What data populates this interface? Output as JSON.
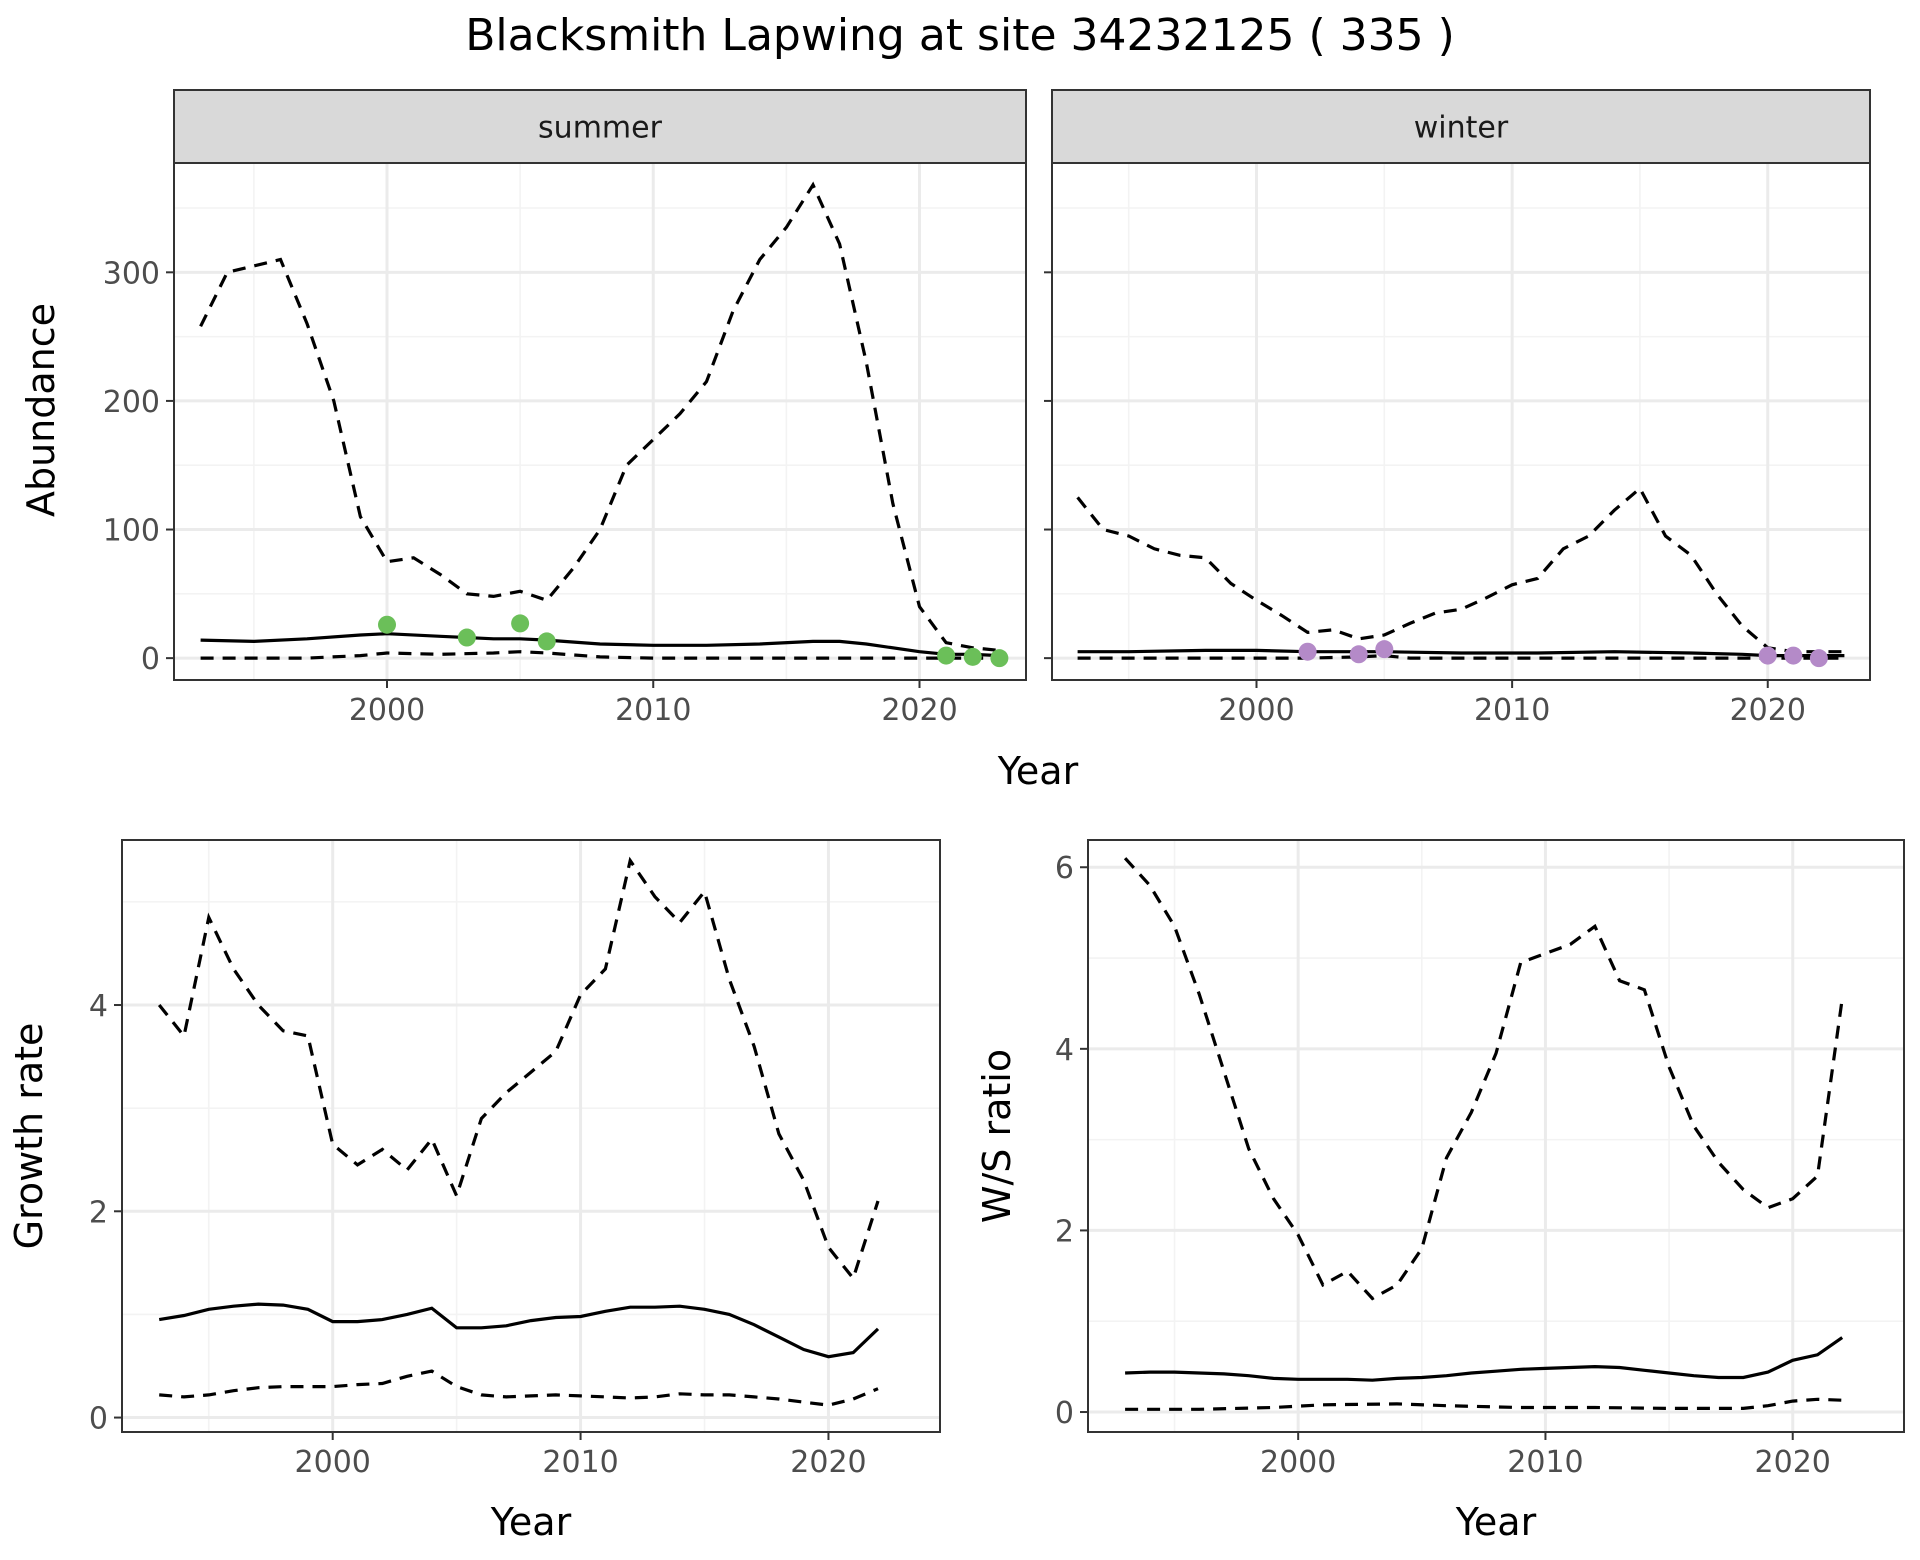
{
  "figure": {
    "title": "Blacksmith Lapwing at site 34232125 ( 335 )",
    "colors": {
      "summer_points": "#6bbf59",
      "winter_points": "#b48ac8",
      "lines": "#000000"
    }
  },
  "chart_data": [
    {
      "id": "summer",
      "type": "line",
      "facet_label": "summer",
      "xlabel": "",
      "ylabel": "Abundance",
      "xlim": [
        1992,
        2024
      ],
      "ylim": [
        -17,
        385
      ],
      "xticks": [
        2000,
        2010,
        2020
      ],
      "yticks": [
        0,
        100,
        200,
        300
      ],
      "grid": true,
      "series": [
        {
          "role": "mean",
          "x": [
            1993,
            1995,
            1997,
            1999,
            2000,
            2002,
            2004,
            2005,
            2006,
            2008,
            2010,
            2012,
            2014,
            2016,
            2017,
            2018,
            2020,
            2021,
            2022,
            2023
          ],
          "y": [
            14,
            13,
            15,
            18,
            19,
            17,
            15,
            15,
            14,
            11,
            10,
            10,
            11,
            13,
            13,
            11,
            5,
            3,
            3,
            2
          ]
        },
        {
          "role": "upper",
          "x": [
            1993,
            1994,
            1995,
            1996,
            1997,
            1998,
            1999,
            2000,
            2001,
            2002,
            2003,
            2004,
            2005,
            2006,
            2007,
            2008,
            2009,
            2010,
            2011,
            2012,
            2013,
            2014,
            2015,
            2016,
            2017,
            2018,
            2019,
            2020,
            2021,
            2022,
            2023
          ],
          "y": [
            258,
            300,
            305,
            310,
            260,
            200,
            110,
            75,
            78,
            65,
            50,
            48,
            52,
            45,
            70,
            100,
            150,
            170,
            190,
            215,
            270,
            310,
            335,
            368,
            322,
            230,
            120,
            40,
            12,
            8,
            6
          ]
        },
        {
          "role": "lower",
          "x": [
            1993,
            1995,
            1997,
            1999,
            2000,
            2002,
            2004,
            2005,
            2006,
            2008,
            2010,
            2012,
            2014,
            2016,
            2018,
            2020,
            2021,
            2022,
            2023
          ],
          "y": [
            0,
            0,
            0,
            2,
            4,
            3,
            4,
            5,
            4,
            1,
            0,
            0,
            0,
            0,
            0,
            0,
            0,
            0,
            0
          ]
        }
      ],
      "points": {
        "x": [
          2000,
          2003,
          2005,
          2006,
          2021,
          2022,
          2023
        ],
        "y": [
          26,
          16,
          27,
          13,
          2,
          1,
          0
        ]
      }
    },
    {
      "id": "winter",
      "type": "line",
      "facet_label": "winter",
      "xlabel": "",
      "ylabel": "",
      "xlim": [
        1992,
        2024
      ],
      "ylim": [
        -17,
        385
      ],
      "xticks": [
        2000,
        2010,
        2020
      ],
      "yticks": [
        0,
        100,
        200,
        300
      ],
      "grid": true,
      "series": [
        {
          "role": "mean",
          "x": [
            1993,
            1995,
            1998,
            2000,
            2002,
            2005,
            2008,
            2011,
            2014,
            2017,
            2019,
            2020,
            2021,
            2022,
            2023
          ],
          "y": [
            5,
            5,
            6,
            6,
            5,
            5,
            4,
            4,
            5,
            4,
            3,
            2,
            2,
            2,
            2
          ]
        },
        {
          "role": "upper",
          "x": [
            1993,
            1994,
            1995,
            1996,
            1997,
            1998,
            1999,
            2000,
            2001,
            2002,
            2003,
            2004,
            2005,
            2006,
            2007,
            2008,
            2009,
            2010,
            2011,
            2012,
            2013,
            2014,
            2015,
            2016,
            2017,
            2018,
            2019,
            2020,
            2021,
            2022,
            2023
          ],
          "y": [
            125,
            100,
            95,
            85,
            80,
            78,
            58,
            45,
            33,
            20,
            22,
            15,
            18,
            27,
            35,
            38,
            47,
            57,
            62,
            85,
            95,
            115,
            132,
            95,
            80,
            50,
            25,
            8,
            5,
            5,
            5
          ]
        },
        {
          "role": "lower",
          "x": [
            1993,
            1996,
            1999,
            2002,
            2004,
            2005,
            2006,
            2010,
            2015,
            2020,
            2023
          ],
          "y": [
            0,
            0,
            0,
            0,
            1,
            2,
            0,
            0,
            0,
            0,
            0
          ]
        }
      ],
      "points": {
        "x": [
          2002,
          2004,
          2005,
          2020,
          2021,
          2022
        ],
        "y": [
          5,
          3,
          7,
          2,
          2,
          0
        ]
      }
    },
    {
      "id": "growth",
      "type": "line",
      "xlabel": "Year",
      "ylabel": "Growth rate",
      "xlim": [
        1991.5,
        2024.5
      ],
      "ylim": [
        -0.14,
        5.6
      ],
      "xticks": [
        2000,
        2010,
        2020
      ],
      "yticks": [
        0,
        2,
        4
      ],
      "grid": true,
      "series": [
        {
          "role": "mean",
          "x": [
            1993,
            1994,
            1995,
            1996,
            1997,
            1998,
            1999,
            2000,
            2001,
            2002,
            2003,
            2004,
            2005,
            2006,
            2007,
            2008,
            2009,
            2010,
            2011,
            2012,
            2013,
            2014,
            2015,
            2016,
            2017,
            2018,
            2019,
            2020,
            2021,
            2022
          ],
          "y": [
            0.95,
            0.99,
            1.05,
            1.08,
            1.1,
            1.09,
            1.05,
            0.93,
            0.93,
            0.95,
            1.0,
            1.06,
            0.87,
            0.87,
            0.89,
            0.94,
            0.97,
            0.98,
            1.03,
            1.07,
            1.07,
            1.08,
            1.05,
            1.0,
            0.9,
            0.78,
            0.66,
            0.59,
            0.63,
            0.86
          ]
        },
        {
          "role": "upper",
          "x": [
            1993,
            1994,
            1995,
            1996,
            1997,
            1998,
            1999,
            2000,
            2001,
            2002,
            2003,
            2004,
            2005,
            2006,
            2007,
            2008,
            2009,
            2010,
            2011,
            2012,
            2013,
            2014,
            2015,
            2016,
            2017,
            2018,
            2019,
            2020,
            2021,
            2022
          ],
          "y": [
            4.0,
            3.7,
            4.85,
            4.35,
            4.0,
            3.75,
            3.7,
            2.65,
            2.45,
            2.6,
            2.4,
            2.7,
            2.15,
            2.9,
            3.15,
            3.35,
            3.55,
            4.1,
            4.35,
            5.4,
            5.05,
            4.8,
            5.1,
            4.25,
            3.6,
            2.75,
            2.3,
            1.65,
            1.35,
            2.1
          ]
        },
        {
          "role": "lower",
          "x": [
            1993,
            1994,
            1995,
            1996,
            1997,
            1998,
            1999,
            2000,
            2001,
            2002,
            2003,
            2004,
            2005,
            2006,
            2007,
            2008,
            2009,
            2010,
            2011,
            2012,
            2013,
            2014,
            2015,
            2016,
            2017,
            2018,
            2019,
            2020,
            2021,
            2022
          ],
          "y": [
            0.22,
            0.2,
            0.22,
            0.26,
            0.29,
            0.3,
            0.3,
            0.3,
            0.32,
            0.33,
            0.4,
            0.45,
            0.3,
            0.22,
            0.2,
            0.21,
            0.22,
            0.21,
            0.2,
            0.19,
            0.2,
            0.23,
            0.22,
            0.22,
            0.2,
            0.18,
            0.15,
            0.12,
            0.18,
            0.28
          ]
        }
      ]
    },
    {
      "id": "ratio",
      "type": "line",
      "xlabel": "Year",
      "ylabel": "W/S ratio",
      "xlim": [
        1991.5,
        2024.5
      ],
      "ylim": [
        -0.22,
        6.3
      ],
      "xticks": [
        2000,
        2010,
        2020
      ],
      "yticks": [
        0,
        2,
        4,
        6
      ],
      "grid": true,
      "series": [
        {
          "role": "mean",
          "x": [
            1993,
            1994,
            1995,
            1996,
            1997,
            1998,
            1999,
            2000,
            2001,
            2002,
            2003,
            2004,
            2005,
            2006,
            2007,
            2008,
            2009,
            2010,
            2011,
            2012,
            2013,
            2014,
            2015,
            2016,
            2017,
            2018,
            2019,
            2020,
            2021,
            2022
          ],
          "y": [
            0.43,
            0.44,
            0.44,
            0.43,
            0.42,
            0.4,
            0.37,
            0.36,
            0.36,
            0.36,
            0.35,
            0.37,
            0.38,
            0.4,
            0.43,
            0.45,
            0.47,
            0.48,
            0.49,
            0.5,
            0.49,
            0.46,
            0.43,
            0.4,
            0.38,
            0.38,
            0.44,
            0.57,
            0.63,
            0.82
          ]
        },
        {
          "role": "upper",
          "x": [
            1993,
            1994,
            1995,
            1996,
            1997,
            1998,
            1999,
            2000,
            2001,
            2002,
            2003,
            2004,
            2005,
            2006,
            2007,
            2008,
            2009,
            2010,
            2011,
            2012,
            2013,
            2014,
            2015,
            2016,
            2017,
            2018,
            2019,
            2020,
            2021,
            2022
          ],
          "y": [
            6.1,
            5.8,
            5.35,
            4.6,
            3.75,
            2.9,
            2.35,
            1.95,
            1.4,
            1.55,
            1.25,
            1.4,
            1.8,
            2.8,
            3.3,
            3.95,
            4.95,
            5.05,
            5.15,
            5.35,
            4.75,
            4.65,
            3.8,
            3.15,
            2.75,
            2.45,
            2.25,
            2.35,
            2.6,
            4.55
          ]
        },
        {
          "role": "lower",
          "x": [
            1993,
            1996,
            1999,
            2001,
            2004,
            2006,
            2009,
            2012,
            2015,
            2018,
            2019,
            2020,
            2021,
            2022
          ],
          "y": [
            0.03,
            0.03,
            0.05,
            0.08,
            0.09,
            0.07,
            0.05,
            0.05,
            0.04,
            0.04,
            0.07,
            0.12,
            0.14,
            0.13
          ]
        }
      ]
    }
  ],
  "shared_axes": {
    "top_row_xlabel": "Year"
  }
}
